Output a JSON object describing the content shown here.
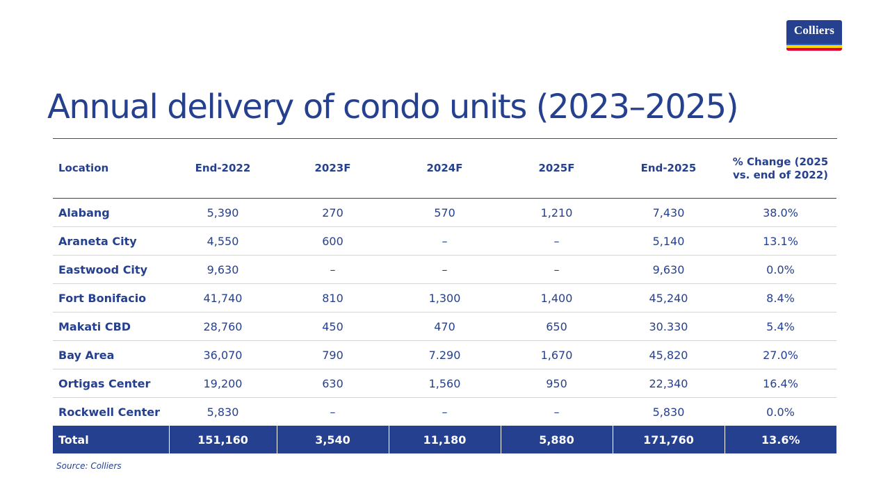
{
  "brand": {
    "logo_text": "Colliers",
    "primary_color": "#25408f"
  },
  "title": "Annual delivery of condo units (2023–2025)",
  "table": {
    "headers": [
      "Location",
      "End-2022",
      "2023F",
      "2024F",
      "2025F",
      "End-2025",
      "% Change (2025 vs. end of 2022)"
    ],
    "rows": [
      [
        "Alabang",
        "5,390",
        "270",
        "570",
        "1,210",
        "7,430",
        "38.0%"
      ],
      [
        "Araneta City",
        "4,550",
        "600",
        "–",
        "–",
        "5,140",
        "13.1%"
      ],
      [
        "Eastwood City",
        "9,630",
        "–",
        "–",
        "–",
        "9,630",
        "0.0%"
      ],
      [
        "Fort Bonifacio",
        "41,740",
        "810",
        "1,300",
        "1,400",
        "45,240",
        "8.4%"
      ],
      [
        "Makati CBD",
        "28,760",
        "450",
        "470",
        "650",
        "30.330",
        "5.4%"
      ],
      [
        "Bay Area",
        "36,070",
        "790",
        "7.290",
        "1,670",
        "45,820",
        "27.0%"
      ],
      [
        "Ortigas Center",
        "19,200",
        "630",
        "1,560",
        "950",
        "22,340",
        "16.4%"
      ],
      [
        "Rockwell Center",
        "5,830",
        "–",
        "–",
        "–",
        "5,830",
        "0.0%"
      ]
    ],
    "total": [
      "Total",
      "151,160",
      "3,540",
      "11,180",
      "5,880",
      "171,760",
      "13.6%"
    ]
  },
  "source": "Source: Colliers"
}
